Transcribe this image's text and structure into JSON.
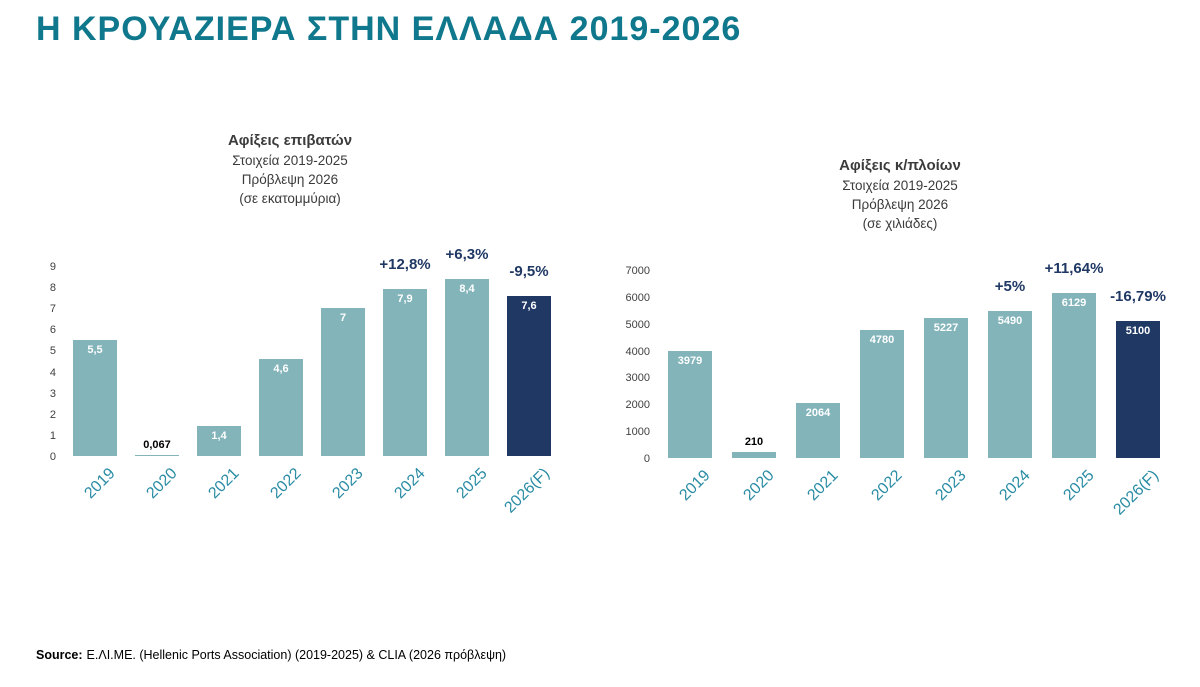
{
  "page": {
    "title": "Η ΚΡΟΥΑΖΙΕΡΑ ΣΤΗΝ ΕΛΛΑΔΑ 2019-2026",
    "source_label": "Source:",
    "source_text": "Ε.ΛΙ.ΜΕ. (Hellenic Ports Association) (2019-2025) & CLIA (2026 πρόβλεψη)"
  },
  "colors": {
    "title": "#10788C",
    "bar_teal": "#82B4BA",
    "bar_navy": "#1F3864",
    "annotation": "#1F3864",
    "year_label": "#2A8CA4",
    "subtitle": "#3B3B3B",
    "tick": "#404040"
  },
  "chart_data": [
    {
      "type": "bar",
      "title": "Αφίξεις επιβατών",
      "subtitle_lines": [
        "Στοιχεία 2019-2025",
        "Πρόβλεψη 2026",
        "(σε εκατομμύρια)"
      ],
      "categories": [
        "2019",
        "2020",
        "2021",
        "2022",
        "2023",
        "2024",
        "2025",
        "2026(F)"
      ],
      "values": [
        5.5,
        0.067,
        1.4,
        4.6,
        7,
        7.9,
        8.4,
        7.6
      ],
      "value_labels": [
        "5,5",
        "0,067",
        "1,4",
        "4,6",
        "7",
        "7,9",
        "8,4",
        "7,6"
      ],
      "annotations": [
        null,
        null,
        null,
        null,
        null,
        "+12,8%",
        "+6,3%",
        "-9,5%"
      ],
      "highlight_last": true,
      "xlabel": "",
      "ylabel": "",
      "ylim": [
        0,
        9
      ],
      "yticks": [
        0,
        1,
        2,
        3,
        4,
        5,
        6,
        7,
        8,
        9
      ],
      "grid": false,
      "legend": "none"
    },
    {
      "type": "bar",
      "title": "Αφίξεις κ/πλοίων",
      "subtitle_lines": [
        "Στοιχεία 2019-2025",
        "Πρόβλεψη 2026",
        "(σε χιλιάδες)"
      ],
      "categories": [
        "2019",
        "2020",
        "2021",
        "2022",
        "2023",
        "2024",
        "2025",
        "2026(F)"
      ],
      "values": [
        3979,
        210,
        2064,
        4780,
        5227,
        5490,
        6129,
        5100
      ],
      "value_labels": [
        "3979",
        "210",
        "2064",
        "4780",
        "5227",
        "5490",
        "6129",
        "5100"
      ],
      "annotations": [
        null,
        null,
        null,
        null,
        null,
        "+5%",
        "+11,64%",
        "-16,79%"
      ],
      "highlight_last": true,
      "xlabel": "",
      "ylabel": "",
      "ylim": [
        0,
        7000
      ],
      "yticks": [
        0,
        1000,
        2000,
        3000,
        4000,
        5000,
        6000,
        7000
      ],
      "grid": false,
      "legend": "none"
    }
  ]
}
